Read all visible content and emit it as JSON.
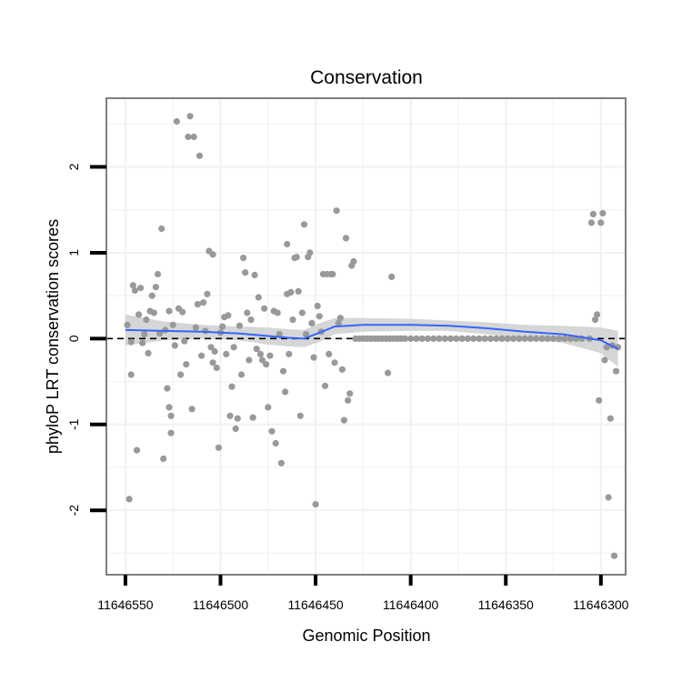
{
  "chart_data": {
    "type": "scatter",
    "title": "Conservation",
    "xlabel": "Genomic Position",
    "ylabel": "phyloP LRT conservation scores",
    "xlim": [
      11646560,
      11646287
    ],
    "ylim": [
      -2.75,
      2.8
    ],
    "x_reversed": true,
    "xticks": [
      11646550,
      11646500,
      11646450,
      11646400,
      11646350,
      11646300
    ],
    "xtick_labels": [
      "11646550",
      "11646500",
      "11646450",
      "11646400",
      "11646350",
      "11646300"
    ],
    "yticks": [
      -2,
      -1,
      0,
      1,
      2
    ],
    "ytick_labels": [
      "-2",
      "-1",
      "0",
      "1",
      "2"
    ],
    "grid": true,
    "reference_line": {
      "y": 0,
      "style": "dashed"
    },
    "point_color": "#999999",
    "smooth_color": "#3366ff",
    "band_color": "#d6d6d6",
    "points": [
      [
        11646549,
        0.16
      ],
      [
        11646548,
        -1.87
      ],
      [
        11646547,
        -0.04
      ],
      [
        11646547,
        -0.42
      ],
      [
        11646546,
        0.62
      ],
      [
        11646545,
        0.56
      ],
      [
        11646544,
        -1.3
      ],
      [
        11646543,
        0.28
      ],
      [
        11646542,
        0.59
      ],
      [
        11646541,
        -0.05
      ],
      [
        11646540,
        0.05
      ],
      [
        11646539,
        0.22
      ],
      [
        11646538,
        -0.17
      ],
      [
        11646537,
        0.32
      ],
      [
        11646536,
        0.5
      ],
      [
        11646535,
        0.3
      ],
      [
        11646534,
        0.6
      ],
      [
        11646533,
        0.75
      ],
      [
        11646532,
        0.06
      ],
      [
        11646531,
        1.28
      ],
      [
        11646530,
        -1.4
      ],
      [
        11646529,
        0.1
      ],
      [
        11646528,
        -0.58
      ],
      [
        11646527,
        -0.8
      ],
      [
        11646527,
        0.32
      ],
      [
        11646526,
        -1.1
      ],
      [
        11646526,
        -0.9
      ],
      [
        11646525,
        0.16
      ],
      [
        11646524,
        -0.08
      ],
      [
        11646523,
        2.53
      ],
      [
        11646522,
        0.35
      ],
      [
        11646521,
        -0.42
      ],
      [
        11646520,
        0.31
      ],
      [
        11646519,
        -0.03
      ],
      [
        11646518,
        -0.3
      ],
      [
        11646517,
        2.35
      ],
      [
        11646516,
        2.59
      ],
      [
        11646515,
        -0.82
      ],
      [
        11646514,
        2.35
      ],
      [
        11646513,
        0.13
      ],
      [
        11646512,
        0.4
      ],
      [
        11646511,
        2.13
      ],
      [
        11646510,
        -0.2
      ],
      [
        11646509,
        0.42
      ],
      [
        11646508,
        0.09
      ],
      [
        11646507,
        0.52
      ],
      [
        11646506,
        1.02
      ],
      [
        11646505,
        -0.1
      ],
      [
        11646504,
        0.98
      ],
      [
        11646504,
        -0.28
      ],
      [
        11646503,
        -0.15
      ],
      [
        11646502,
        -0.34
      ],
      [
        11646501,
        -1.27
      ],
      [
        11646500,
        0.07
      ],
      [
        11646499,
        0.14
      ],
      [
        11646498,
        0.25
      ],
      [
        11646497,
        -0.18
      ],
      [
        11646496,
        0.27
      ],
      [
        11646495,
        -0.9
      ],
      [
        11646494,
        -0.56
      ],
      [
        11646493,
        -0.1
      ],
      [
        11646492,
        -1.05
      ],
      [
        11646491,
        -0.93
      ],
      [
        11646490,
        0.15
      ],
      [
        11646489,
        -0.42
      ],
      [
        11646488,
        0.94
      ],
      [
        11646487,
        0.77
      ],
      [
        11646486,
        0.3
      ],
      [
        11646485,
        -0.25
      ],
      [
        11646484,
        0.22
      ],
      [
        11646483,
        -0.92
      ],
      [
        11646482,
        0.74
      ],
      [
        11646481,
        -0.12
      ],
      [
        11646480,
        0.48
      ],
      [
        11646479,
        -0.18
      ],
      [
        11646478,
        -0.25
      ],
      [
        11646477,
        0.35
      ],
      [
        11646476,
        -0.3
      ],
      [
        11646475,
        -0.8
      ],
      [
        11646474,
        -0.2
      ],
      [
        11646473,
        -1.08
      ],
      [
        11646472,
        0.32
      ],
      [
        11646471,
        -1.22
      ],
      [
        11646470,
        0.3
      ],
      [
        11646469,
        0.05
      ],
      [
        11646468,
        -1.45
      ],
      [
        11646467,
        -0.38
      ],
      [
        11646466,
        -0.62
      ],
      [
        11646465,
        0.52
      ],
      [
        11646465,
        1.1
      ],
      [
        11646464,
        -0.18
      ],
      [
        11646463,
        0.54
      ],
      [
        11646462,
        0.22
      ],
      [
        11646461,
        0.94
      ],
      [
        11646460,
        0.95
      ],
      [
        11646459,
        0.55
      ],
      [
        11646458,
        -0.9
      ],
      [
        11646457,
        0.3
      ],
      [
        11646456,
        1.33
      ],
      [
        11646455,
        0.05
      ],
      [
        11646454,
        0.95
      ],
      [
        11646453,
        1.0
      ],
      [
        11646452,
        0.18
      ],
      [
        11646451,
        -0.22
      ],
      [
        11646450,
        -1.93
      ],
      [
        11646449,
        0.38
      ],
      [
        11646448,
        0.26
      ],
      [
        11646447,
        0.08
      ],
      [
        11646446,
        0.75
      ],
      [
        11646445,
        -0.55
      ],
      [
        11646444,
        0.75
      ],
      [
        11646443,
        -0.18
      ],
      [
        11646442,
        0.75
      ],
      [
        11646441,
        0.75
      ],
      [
        11646440,
        -0.28
      ],
      [
        11646439,
        1.49
      ],
      [
        11646438,
        0.18
      ],
      [
        11646437,
        0.24
      ],
      [
        11646436,
        -0.36
      ],
      [
        11646435,
        -0.95
      ],
      [
        11646434,
        1.17
      ],
      [
        11646433,
        -0.72
      ],
      [
        11646432,
        -0.64
      ],
      [
        11646431,
        0.85
      ],
      [
        11646430,
        0.9
      ],
      [
        11646429,
        0.0
      ],
      [
        11646427,
        0.0
      ],
      [
        11646425,
        0.0
      ],
      [
        11646423,
        0.0
      ],
      [
        11646421,
        0.0
      ],
      [
        11646419,
        0.0
      ],
      [
        11646417,
        0.0
      ],
      [
        11646415,
        0.0
      ],
      [
        11646413,
        0.0
      ],
      [
        11646412,
        -0.4
      ],
      [
        11646411,
        0.0
      ],
      [
        11646410,
        0.72
      ],
      [
        11646409,
        0.0
      ],
      [
        11646407,
        0.0
      ],
      [
        11646405,
        0.0
      ],
      [
        11646403,
        0.0
      ],
      [
        11646400,
        0.0
      ],
      [
        11646397,
        0.0
      ],
      [
        11646394,
        0.0
      ],
      [
        11646391,
        0.0
      ],
      [
        11646388,
        0.0
      ],
      [
        11646385,
        0.0
      ],
      [
        11646382,
        0.0
      ],
      [
        11646379,
        0.0
      ],
      [
        11646376,
        0.0
      ],
      [
        11646373,
        0.0
      ],
      [
        11646370,
        0.0
      ],
      [
        11646367,
        0.0
      ],
      [
        11646364,
        0.0
      ],
      [
        11646361,
        0.0
      ],
      [
        11646358,
        0.0
      ],
      [
        11646355,
        0.0
      ],
      [
        11646352,
        0.0
      ],
      [
        11646349,
        0.0
      ],
      [
        11646346,
        0.0
      ],
      [
        11646343,
        0.0
      ],
      [
        11646340,
        0.0
      ],
      [
        11646337,
        0.0
      ],
      [
        11646334,
        0.0
      ],
      [
        11646331,
        0.0
      ],
      [
        11646328,
        0.0
      ],
      [
        11646325,
        0.0
      ],
      [
        11646322,
        0.0
      ],
      [
        11646319,
        0.0
      ],
      [
        11646316,
        0.0
      ],
      [
        11646313,
        0.0
      ],
      [
        11646310,
        0.0
      ],
      [
        11646306,
        0.0
      ],
      [
        11646305,
        1.35
      ],
      [
        11646304,
        1.45
      ],
      [
        11646303,
        0.22
      ],
      [
        11646302,
        0.28
      ],
      [
        11646301,
        -0.72
      ],
      [
        11646300,
        1.35
      ],
      [
        11646299,
        1.46
      ],
      [
        11646298,
        -0.25
      ],
      [
        11646297,
        -0.1
      ],
      [
        11646296,
        -1.85
      ],
      [
        11646295,
        -0.93
      ],
      [
        11646294,
        -0.08
      ],
      [
        11646293,
        -2.53
      ],
      [
        11646292,
        -0.38
      ],
      [
        11646291,
        -0.1
      ]
    ],
    "smooth": {
      "x": [
        11646550,
        11646530,
        11646510,
        11646490,
        11646475,
        11646465,
        11646456,
        11646448,
        11646440,
        11646425,
        11646400,
        11646380,
        11646360,
        11646340,
        11646320,
        11646300,
        11646291
      ],
      "y": [
        0.1,
        0.09,
        0.08,
        0.06,
        0.03,
        0.01,
        0.0,
        0.07,
        0.14,
        0.16,
        0.16,
        0.15,
        0.12,
        0.08,
        0.05,
        -0.02,
        -0.12
      ],
      "lower": [
        -0.08,
        -0.02,
        0.0,
        -0.02,
        -0.07,
        -0.09,
        -0.1,
        -0.04,
        0.05,
        0.08,
        0.09,
        0.09,
        0.05,
        0.0,
        -0.05,
        -0.17,
        -0.33
      ],
      "upper": [
        0.28,
        0.2,
        0.16,
        0.14,
        0.13,
        0.11,
        0.1,
        0.18,
        0.24,
        0.24,
        0.23,
        0.21,
        0.19,
        0.16,
        0.15,
        0.13,
        0.09
      ]
    }
  }
}
